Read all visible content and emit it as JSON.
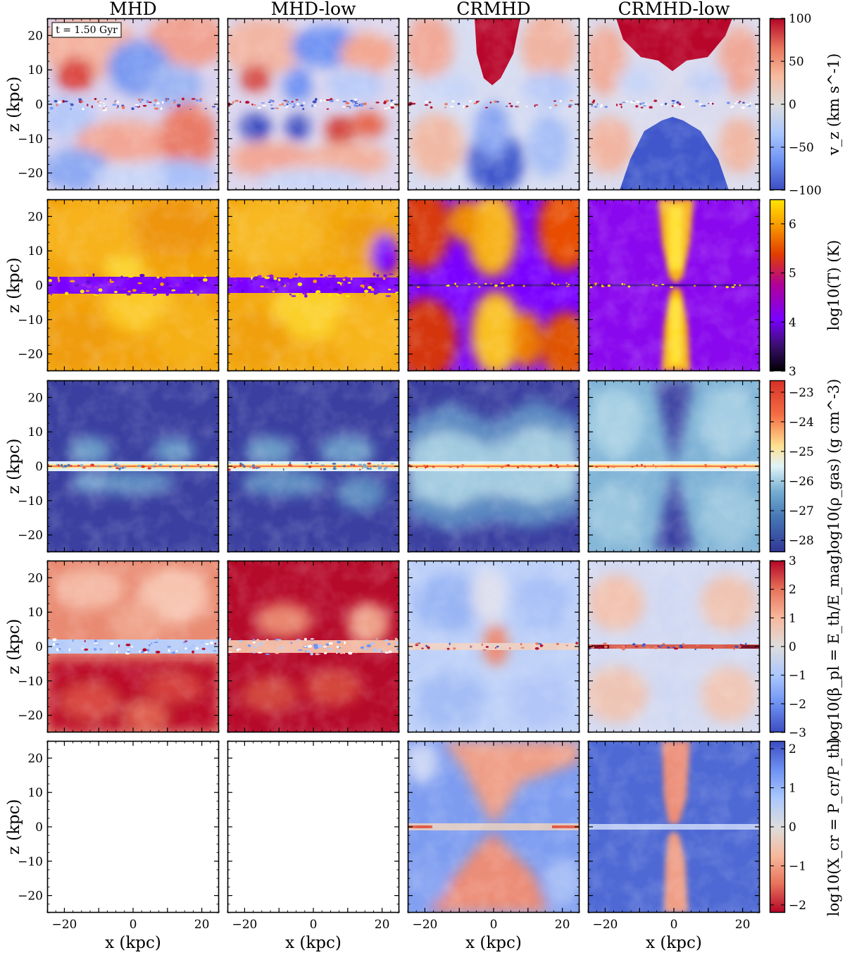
{
  "figure": {
    "columns": [
      "MHD",
      "MHD-low",
      "CRMHD",
      "CRMHD-low"
    ],
    "time_label": "t = 1.50 Gyr",
    "x_axis_label": "x (kpc)",
    "y_axis_label": "z (kpc)",
    "x_ticks": [
      "−20",
      "0",
      "20"
    ],
    "y_ticks": [
      "20",
      "10",
      "0",
      "−10",
      "−20"
    ],
    "axis_range_kpc": [
      -25,
      25
    ]
  },
  "rows": [
    {
      "quantity": "vertical velocity",
      "colorbar_label": "v_z (km s^-1)",
      "colorbar_ticks": [
        "100",
        "50",
        "0",
        "−50",
        "−100"
      ],
      "colormap": [
        "#3b4cc0",
        "#6f92f3",
        "#aac7fd",
        "#dddddd",
        "#f7b89c",
        "#e7745b",
        "#b40426"
      ]
    },
    {
      "quantity": "temperature",
      "colorbar_label": "log10(T) (K)",
      "colorbar_ticks": [
        "6",
        "5",
        "4",
        "3"
      ],
      "colormap": [
        "#000004",
        "#3b0f70",
        "#7a00ff",
        "#b0009a",
        "#e23d00",
        "#f99a00",
        "#ffe700"
      ]
    },
    {
      "quantity": "gas density",
      "colorbar_label": "log10(ρ_gas) (g cm^-3)",
      "colorbar_ticks": [
        "−23",
        "−24",
        "−25",
        "−26",
        "−27",
        "−28"
      ],
      "colormap": [
        "#313695",
        "#4575b4",
        "#74add1",
        "#e0f3f8",
        "#fee090",
        "#f46d43",
        "#d73027"
      ]
    },
    {
      "quantity": "plasma beta",
      "colorbar_label": "log10(β_pl = E_th/E_mag)",
      "colorbar_ticks": [
        "3",
        "2",
        "1",
        "0",
        "−1",
        "−2",
        "−3"
      ],
      "colormap": [
        "#3b4cc0",
        "#6f92f3",
        "#aac7fd",
        "#dddddd",
        "#f7b89c",
        "#e7745b",
        "#b40426"
      ]
    },
    {
      "quantity": "cosmic ray to thermal pressure ratio",
      "colorbar_label": "log10(X_cr = P_cr/P_th)",
      "colorbar_ticks": [
        "2",
        "1",
        "0",
        "−1",
        "−2"
      ],
      "colormap": [
        "#b40426",
        "#e7745b",
        "#f7b89c",
        "#dddddd",
        "#aac7fd",
        "#6f92f3",
        "#3b4cc0"
      ]
    }
  ]
}
